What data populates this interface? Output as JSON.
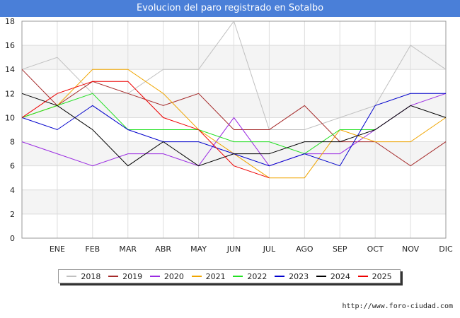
{
  "header": {
    "title": "Evolucion del paro registrado en Sotalbo"
  },
  "footer": {
    "url": "http://www.foro-ciudad.com"
  },
  "chart_data": {
    "type": "line",
    "title": "Evolucion del paro registrado en Sotalbo",
    "xlabel": "",
    "ylabel": "",
    "categories": [
      "",
      "ENE",
      "FEB",
      "MAR",
      "ABR",
      "MAY",
      "JUN",
      "JUL",
      "AGO",
      "SEP",
      "OCT",
      "NOV",
      "DIC"
    ],
    "ylim": [
      0,
      18
    ],
    "yticks": [
      0,
      2,
      4,
      6,
      8,
      10,
      12,
      14,
      16,
      18
    ],
    "grid": true,
    "legend_position": "bottom",
    "series": [
      {
        "name": "2018",
        "color": "#c0c0c0",
        "values": [
          14,
          15,
          12,
          12,
          14,
          14,
          18,
          9,
          9,
          10,
          11,
          16,
          14
        ]
      },
      {
        "name": "2019",
        "color": "#a52a2a",
        "values": [
          14,
          11,
          13,
          12,
          11,
          12,
          9,
          9,
          11,
          8,
          8,
          6,
          8
        ]
      },
      {
        "name": "2020",
        "color": "#9a2be2",
        "values": [
          8,
          7,
          6,
          7,
          7,
          6,
          10,
          6,
          7,
          7,
          9,
          11,
          12
        ]
      },
      {
        "name": "2021",
        "color": "#f0a500",
        "values": [
          10,
          11,
          14,
          14,
          12,
          9,
          7,
          5,
          5,
          9,
          8,
          8,
          10
        ]
      },
      {
        "name": "2022",
        "color": "#22e022",
        "values": [
          10,
          11,
          12,
          9,
          9,
          9,
          8,
          8,
          7,
          9,
          9,
          null,
          null
        ]
      },
      {
        "name": "2023",
        "color": "#0000cc",
        "values": [
          10,
          9,
          11,
          9,
          8,
          8,
          7,
          6,
          7,
          6,
          11,
          12,
          12
        ]
      },
      {
        "name": "2024",
        "color": "#000000",
        "values": [
          12,
          11,
          9,
          6,
          8,
          6,
          7,
          7,
          8,
          8,
          9,
          11,
          10
        ]
      },
      {
        "name": "2025",
        "color": "#ee0000",
        "values": [
          10,
          12,
          13,
          13,
          10,
          9,
          6,
          5,
          null,
          null,
          null,
          null,
          null
        ]
      }
    ]
  }
}
